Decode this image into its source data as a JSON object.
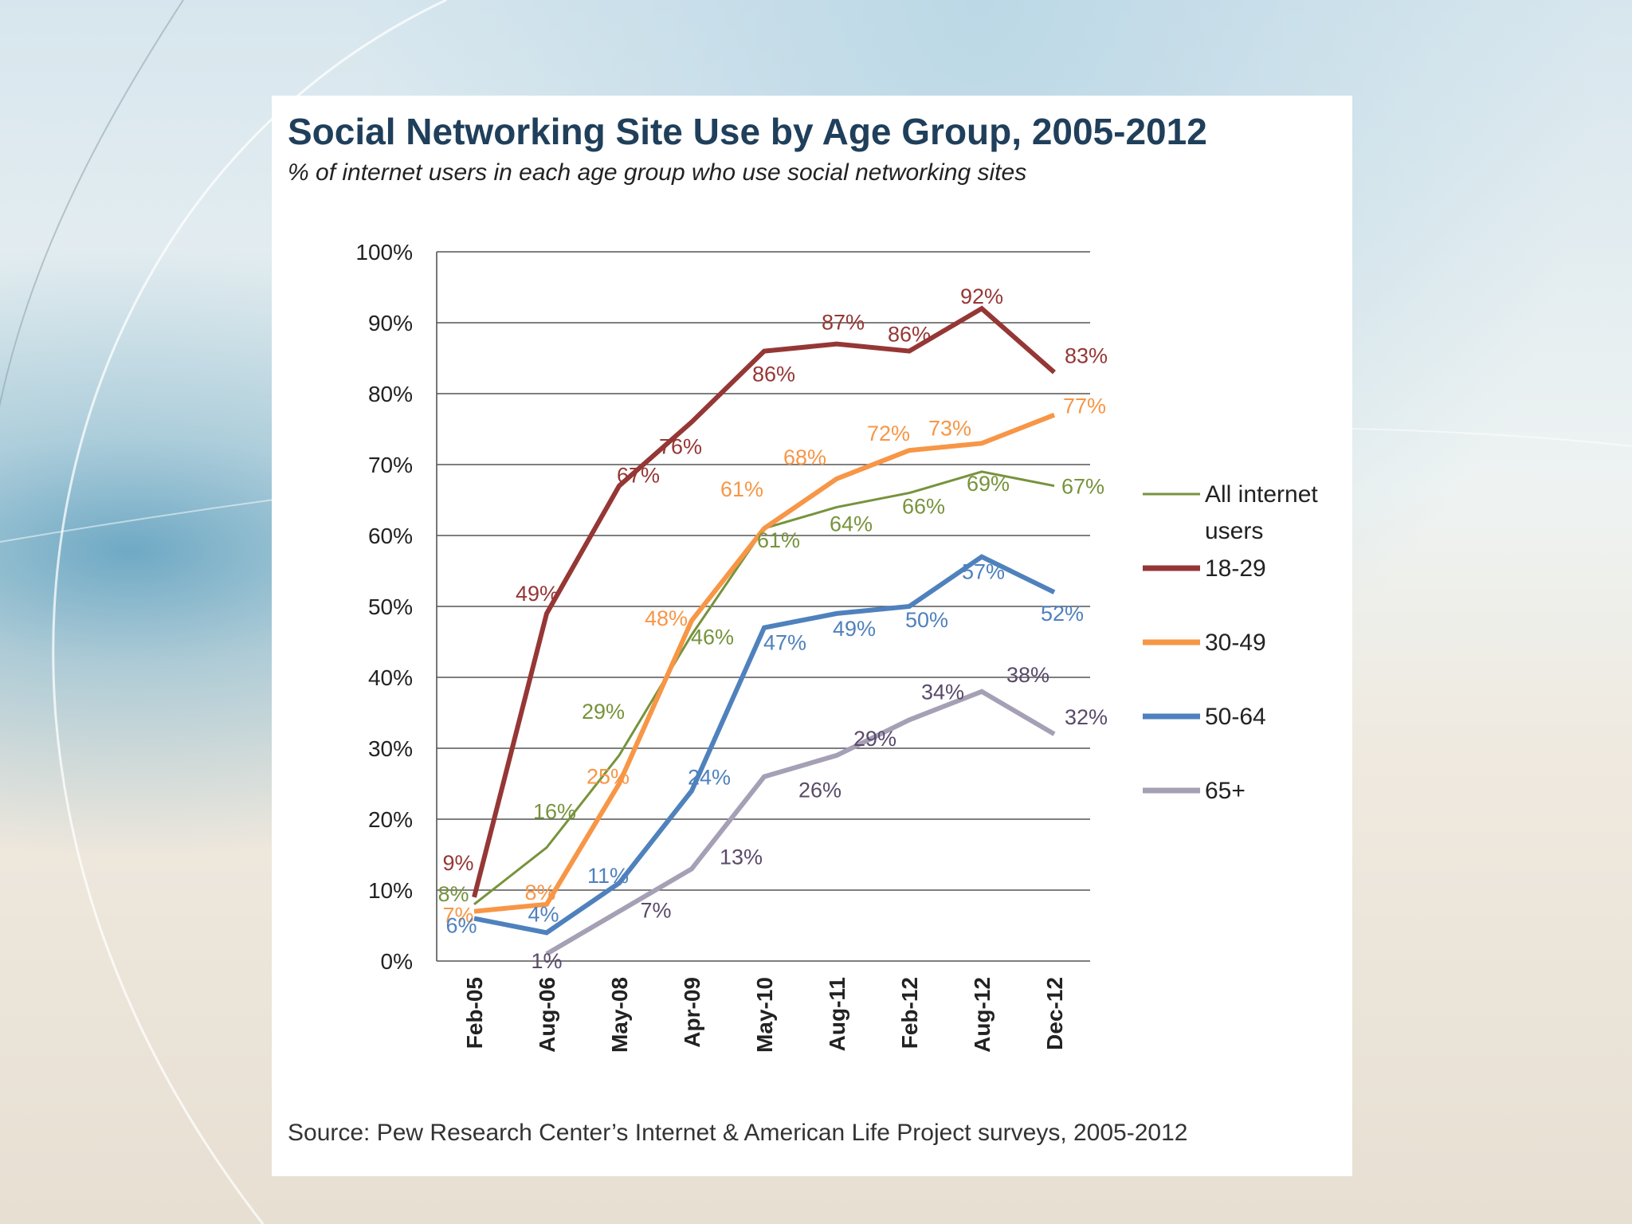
{
  "chart_data": {
    "type": "line",
    "title": "Social Networking Site Use by Age Group, 2005-2012",
    "subtitle": "% of internet users in each age group who use social networking sites",
    "source": "Source: Pew Research Center’s Internet & American Life Project surveys, 2005-2012",
    "categories": [
      "Feb-05",
      "Aug-06",
      "May-08",
      "Apr-09",
      "May-10",
      "Aug-11",
      "Feb-12",
      "Aug-12",
      "Dec-12"
    ],
    "y_ticks": [
      "0%",
      "10%",
      "20%",
      "30%",
      "40%",
      "50%",
      "60%",
      "70%",
      "80%",
      "90%",
      "100%"
    ],
    "ylim": [
      0,
      100
    ],
    "grid": true,
    "legend_position": "right",
    "series": [
      {
        "name": "All internet users",
        "color": "#77933c",
        "values": [
          8,
          16,
          29,
          46,
          61,
          64,
          66,
          69,
          67
        ],
        "labels": [
          "8%",
          "16%",
          "29%",
          "46%",
          "61%",
          "64%",
          "66%",
          "69%",
          "67%"
        ]
      },
      {
        "name": "18-29",
        "color": "#953735",
        "values": [
          9,
          49,
          67,
          76,
          86,
          87,
          86,
          92,
          83
        ],
        "labels": [
          "9%",
          "49%",
          "67%",
          "76%",
          "86%",
          "87%",
          "86%",
          "92%",
          "83%"
        ]
      },
      {
        "name": "30-49",
        "color": "#f79646",
        "values": [
          7,
          8,
          25,
          48,
          61,
          68,
          72,
          73,
          77
        ],
        "labels": [
          "7%",
          "8%",
          "25%",
          "48%",
          "61%",
          "68%",
          "72%",
          "73%",
          "77%"
        ]
      },
      {
        "name": "50-64",
        "color": "#4f81bd",
        "values": [
          6,
          4,
          11,
          24,
          47,
          49,
          50,
          57,
          52
        ],
        "labels": [
          "6%",
          "4%",
          "11%",
          "24%",
          "47%",
          "49%",
          "50%",
          "57%",
          "52%"
        ]
      },
      {
        "name": "65+",
        "color": "#a5a0b5",
        "label_color": "#5a4a6a",
        "values": [
          null,
          1,
          7,
          13,
          26,
          29,
          34,
          38,
          32
        ],
        "labels": [
          null,
          "1%",
          "7%",
          "13%",
          "26%",
          "29%",
          "34%",
          "38%",
          "32%"
        ]
      }
    ],
    "legend": [
      {
        "lines": [
          "All internet",
          "users"
        ]
      },
      {
        "lines": [
          "18-29"
        ]
      },
      {
        "lines": [
          "30-49"
        ]
      },
      {
        "lines": [
          "50-64"
        ]
      },
      {
        "lines": [
          "65+"
        ]
      }
    ]
  }
}
